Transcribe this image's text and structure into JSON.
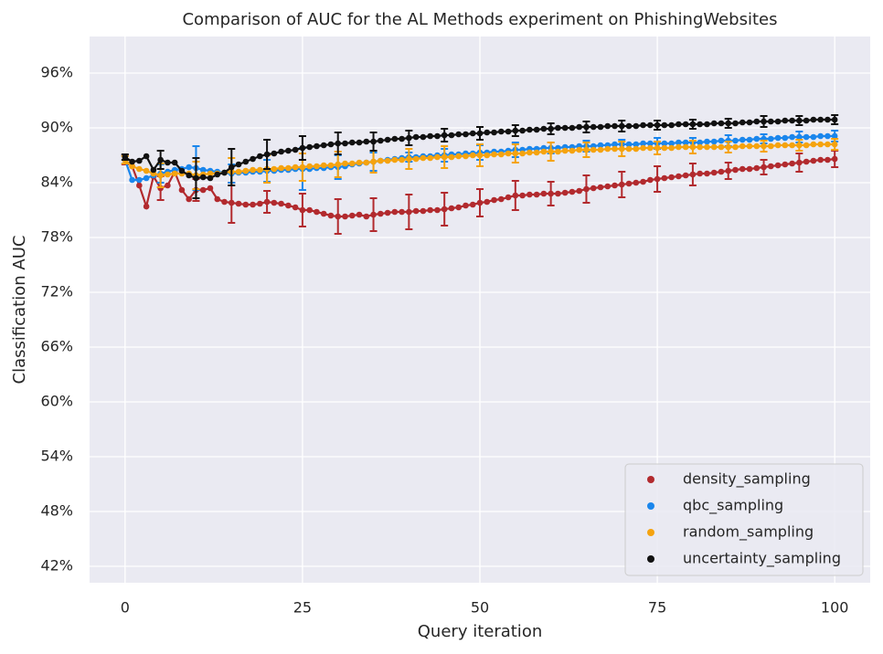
{
  "chart_data": {
    "type": "line",
    "title": "Comparison of AUC for the AL Methods experiment on PhishingWebsites",
    "x_label": "Query iteration",
    "y_label": "Classification AUC",
    "xlim": [
      -5,
      105
    ],
    "xticks": [
      0,
      25,
      50,
      75,
      100
    ],
    "ylim": [
      40.2,
      100
    ],
    "yticks": [
      {
        "value": 42,
        "label": "42%"
      },
      {
        "value": 48,
        "label": "48%"
      },
      {
        "value": 54,
        "label": "54%"
      },
      {
        "value": 60,
        "label": "60%"
      },
      {
        "value": 66,
        "label": "66%"
      },
      {
        "value": 72,
        "label": "72%"
      },
      {
        "value": 78,
        "label": "78%"
      },
      {
        "value": 84,
        "label": "84%"
      },
      {
        "value": 90,
        "label": "90%"
      },
      {
        "value": 96,
        "label": "96%"
      }
    ],
    "grid": true,
    "legend": "lower right",
    "x": [
      0,
      1,
      2,
      3,
      4,
      5,
      6,
      7,
      8,
      9,
      10,
      11,
      12,
      13,
      14,
      15,
      16,
      17,
      18,
      19,
      20,
      21,
      22,
      23,
      24,
      25,
      26,
      27,
      28,
      29,
      30,
      31,
      32,
      33,
      34,
      35,
      36,
      37,
      38,
      39,
      40,
      41,
      42,
      43,
      44,
      45,
      46,
      47,
      48,
      49,
      50,
      51,
      52,
      53,
      54,
      55,
      56,
      57,
      58,
      59,
      60,
      61,
      62,
      63,
      64,
      65,
      66,
      67,
      68,
      69,
      70,
      71,
      72,
      73,
      74,
      75,
      76,
      77,
      78,
      79,
      80,
      81,
      82,
      83,
      84,
      85,
      86,
      87,
      88,
      89,
      90,
      91,
      92,
      93,
      94,
      95,
      96,
      97,
      98,
      99,
      100
    ],
    "error_x": [
      0,
      5,
      10,
      15,
      20,
      25,
      30,
      35,
      40,
      45,
      50,
      55,
      60,
      65,
      70,
      75,
      80,
      85,
      90,
      95,
      100
    ],
    "series": [
      {
        "name": "density_sampling",
        "color": "#b22a2e",
        "values": [
          86.5,
          85.8,
          83.7,
          81.4,
          84.7,
          83.4,
          83.7,
          85.2,
          83.2,
          82.2,
          83.2,
          83.2,
          83.4,
          82.2,
          81.9,
          81.8,
          81.7,
          81.6,
          81.6,
          81.7,
          81.9,
          81.8,
          81.7,
          81.5,
          81.3,
          81.0,
          81.0,
          80.8,
          80.6,
          80.4,
          80.3,
          80.3,
          80.4,
          80.5,
          80.3,
          80.5,
          80.6,
          80.7,
          80.8,
          80.8,
          80.8,
          80.9,
          80.9,
          81.0,
          81.0,
          81.1,
          81.2,
          81.3,
          81.5,
          81.6,
          81.8,
          81.9,
          82.1,
          82.2,
          82.4,
          82.6,
          82.6,
          82.7,
          82.7,
          82.8,
          82.8,
          82.8,
          82.9,
          83.0,
          83.1,
          83.3,
          83.4,
          83.5,
          83.6,
          83.7,
          83.8,
          83.9,
          84.0,
          84.1,
          84.3,
          84.4,
          84.5,
          84.6,
          84.7,
          84.8,
          84.9,
          85.0,
          85.0,
          85.1,
          85.2,
          85.3,
          85.4,
          85.5,
          85.5,
          85.6,
          85.7,
          85.8,
          85.9,
          86.0,
          86.1,
          86.2,
          86.3,
          86.4,
          86.5,
          86.5,
          86.6
        ],
        "errors": [
          0.5,
          1.3,
          1.2,
          2.2,
          1.2,
          1.8,
          1.9,
          1.8,
          1.9,
          1.8,
          1.5,
          1.6,
          1.3,
          1.5,
          1.4,
          1.4,
          1.2,
          0.9,
          0.8,
          1.0,
          0.9
        ]
      },
      {
        "name": "qbc_sampling",
        "color": "#1a86ec",
        "values": [
          86.5,
          84.3,
          84.3,
          84.5,
          84.8,
          85.0,
          85.2,
          85.4,
          85.5,
          85.7,
          85.6,
          85.4,
          85.3,
          85.2,
          85.1,
          85.0,
          85.1,
          85.1,
          85.2,
          85.2,
          85.3,
          85.3,
          85.4,
          85.4,
          85.5,
          85.5,
          85.5,
          85.6,
          85.6,
          85.7,
          85.7,
          85.8,
          86.0,
          86.1,
          86.2,
          86.3,
          86.4,
          86.5,
          86.6,
          86.7,
          86.8,
          86.8,
          86.9,
          86.9,
          87.0,
          87.0,
          87.1,
          87.1,
          87.2,
          87.2,
          87.3,
          87.3,
          87.4,
          87.4,
          87.5,
          87.6,
          87.6,
          87.7,
          87.7,
          87.8,
          87.8,
          87.8,
          87.9,
          87.9,
          88.0,
          88.0,
          88.0,
          88.1,
          88.1,
          88.2,
          88.2,
          88.2,
          88.2,
          88.3,
          88.3,
          88.3,
          88.3,
          88.3,
          88.4,
          88.4,
          88.4,
          88.4,
          88.5,
          88.5,
          88.6,
          88.6,
          88.6,
          88.7,
          88.7,
          88.8,
          88.8,
          88.8,
          88.9,
          88.9,
          89.0,
          89.0,
          89.0,
          89.0,
          89.1,
          89.1,
          89.1
        ],
        "errors": [
          0.4,
          1.0,
          2.4,
          1.0,
          1.2,
          2.3,
          1.3,
          1.0,
          0.5,
          0.7,
          0.8,
          0.8,
          0.6,
          0.6,
          0.5,
          0.6,
          0.5,
          0.6,
          0.5,
          0.6,
          0.6
        ]
      },
      {
        "name": "random_sampling",
        "color": "#f5a30f",
        "values": [
          86.5,
          85.8,
          85.5,
          85.3,
          85.0,
          84.8,
          84.9,
          85.0,
          85.0,
          85.0,
          84.8,
          84.9,
          85.0,
          85.0,
          85.1,
          85.2,
          85.2,
          85.3,
          85.4,
          85.4,
          85.5,
          85.5,
          85.6,
          85.6,
          85.7,
          85.7,
          85.8,
          85.8,
          85.9,
          85.9,
          86.0,
          86.1,
          86.1,
          86.2,
          86.2,
          86.3,
          86.4,
          86.4,
          86.5,
          86.5,
          86.6,
          86.6,
          86.7,
          86.7,
          86.8,
          86.8,
          86.8,
          86.9,
          86.9,
          87.0,
          87.0,
          87.0,
          87.1,
          87.1,
          87.2,
          87.2,
          87.2,
          87.3,
          87.3,
          87.4,
          87.4,
          87.4,
          87.5,
          87.5,
          87.6,
          87.6,
          87.6,
          87.6,
          87.7,
          87.7,
          87.7,
          87.7,
          87.7,
          87.8,
          87.8,
          87.8,
          87.8,
          87.8,
          87.9,
          87.9,
          87.9,
          87.9,
          87.9,
          87.9,
          87.9,
          87.9,
          87.9,
          88.0,
          88.0,
          88.0,
          88.0,
          88.0,
          88.1,
          88.1,
          88.1,
          88.1,
          88.1,
          88.2,
          88.2,
          88.2,
          88.2
        ],
        "errors": [
          0.4,
          1.3,
          1.5,
          1.5,
          1.5,
          1.5,
          1.4,
          1.2,
          1.1,
          1.2,
          1.2,
          1.0,
          1.0,
          0.8,
          0.8,
          0.7,
          0.7,
          0.6,
          0.6,
          0.6,
          0.6
        ]
      },
      {
        "name": "uncertainty_sampling",
        "color": "#111111",
        "values": [
          86.8,
          86.3,
          86.4,
          86.9,
          85.4,
          86.5,
          86.2,
          86.2,
          85.3,
          84.8,
          84.5,
          84.6,
          84.5,
          84.9,
          85.1,
          85.7,
          86.0,
          86.3,
          86.6,
          86.9,
          87.1,
          87.2,
          87.4,
          87.5,
          87.6,
          87.8,
          87.9,
          88.0,
          88.1,
          88.2,
          88.3,
          88.3,
          88.4,
          88.4,
          88.5,
          88.5,
          88.6,
          88.7,
          88.8,
          88.8,
          88.9,
          89.0,
          89.0,
          89.1,
          89.1,
          89.2,
          89.2,
          89.3,
          89.3,
          89.4,
          89.4,
          89.5,
          89.5,
          89.6,
          89.6,
          89.7,
          89.7,
          89.8,
          89.8,
          89.9,
          89.9,
          90.0,
          90.0,
          90.0,
          90.1,
          90.1,
          90.1,
          90.1,
          90.2,
          90.2,
          90.2,
          90.2,
          90.2,
          90.3,
          90.3,
          90.3,
          90.3,
          90.3,
          90.4,
          90.4,
          90.4,
          90.4,
          90.4,
          90.5,
          90.5,
          90.5,
          90.5,
          90.6,
          90.6,
          90.7,
          90.7,
          90.7,
          90.7,
          90.8,
          90.8,
          90.8,
          90.8,
          90.9,
          90.9,
          90.9,
          90.9
        ],
        "errors": [
          0.3,
          1.0,
          2.2,
          2.0,
          1.6,
          1.3,
          1.2,
          1.0,
          0.8,
          0.7,
          0.7,
          0.6,
          0.6,
          0.6,
          0.6,
          0.5,
          0.5,
          0.5,
          0.6,
          0.5,
          0.5
        ]
      }
    ]
  }
}
